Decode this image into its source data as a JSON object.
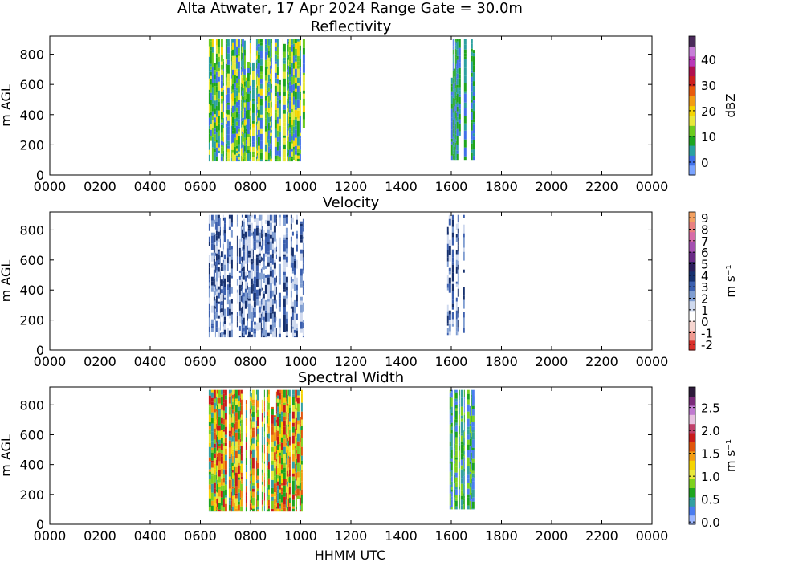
{
  "suptitle": "Alta Atwater, 17 Apr 2024 Range Gate = 30.0m",
  "x_axis_label": "HHMM UTC",
  "colors": {
    "frame": "#000000",
    "background": "#ffffff"
  },
  "chart_data": [
    {
      "type": "heatmap",
      "title": "Reflectivity",
      "ylabel": "m AGL",
      "xlabel": "",
      "xlim": [
        0,
        24
      ],
      "ylim": [
        0,
        920
      ],
      "x_ticks": [
        "0000",
        "0200",
        "0400",
        "0600",
        "0800",
        "1000",
        "1200",
        "1400",
        "1600",
        "1800",
        "2000",
        "2200",
        "0000"
      ],
      "y_ticks": [
        "0",
        "200",
        "400",
        "600",
        "800"
      ],
      "colorbar": {
        "label": "dBZ",
        "range": [
          -5,
          49
        ],
        "ticks": [
          "0",
          "10",
          "20",
          "30",
          "40"
        ],
        "colormap": [
          "#7aa3ff",
          "#3f6fe8",
          "#2aa0a0",
          "#1ea51e",
          "#6ccb1e",
          "#e8e83a",
          "#f5d400",
          "#f39c12",
          "#e85a0c",
          "#cc1f1f",
          "#b0104f",
          "#b838b8",
          "#c77ed8",
          "#4a2a5a"
        ]
      },
      "echo_segments": [
        {
          "start": "0620",
          "end": "1005",
          "top_m": 900,
          "bottom_m": 90,
          "dominant": "yellow-green, mixed blue"
        },
        {
          "start": "1550",
          "end": "1700",
          "top_m": 900,
          "bottom_m": 100,
          "dominant": "blue with green streaks"
        }
      ]
    },
    {
      "type": "heatmap",
      "title": "Velocity",
      "ylabel": "m AGL",
      "xlabel": "",
      "xlim": [
        0,
        24
      ],
      "ylim": [
        0,
        920
      ],
      "x_ticks": [
        "0000",
        "0200",
        "0400",
        "0600",
        "0800",
        "1000",
        "1200",
        "1400",
        "1600",
        "1800",
        "2000",
        "2200",
        "0000"
      ],
      "y_ticks": [
        "0",
        "200",
        "400",
        "600",
        "800"
      ],
      "colorbar": {
        "label": "m s⁻¹",
        "range": [
          -2.5,
          9.5
        ],
        "ticks": [
          "-2",
          "-1",
          "0",
          "1",
          "2",
          "3",
          "4",
          "5",
          "6",
          "7",
          "8",
          "9"
        ],
        "colormap": [
          "#d9302a",
          "#ef9a90",
          "#f6d5d0",
          "#ffffff",
          "#cfd9ee",
          "#7f9dd1",
          "#3b5fae",
          "#16306e",
          "#2b1d5a",
          "#6a2b86",
          "#a44fb0",
          "#d86ca8",
          "#e98080",
          "#f2a060"
        ]
      },
      "echo_segments": [
        {
          "start": "0620",
          "end": "1005",
          "top_m": 900,
          "bottom_m": 85,
          "dominant": "light to dark blue"
        },
        {
          "start": "1550",
          "end": "1710",
          "top_m": 900,
          "bottom_m": 100,
          "dominant": "light to dark blue"
        }
      ]
    },
    {
      "type": "heatmap",
      "title": "Spectral Width",
      "ylabel": "m AGL",
      "xlabel": "HHMM UTC",
      "xlim": [
        0,
        24
      ],
      "ylim": [
        0,
        920
      ],
      "x_ticks": [
        "0000",
        "0200",
        "0400",
        "0600",
        "0800",
        "1000",
        "1200",
        "1400",
        "1600",
        "1800",
        "2000",
        "2200",
        "0000"
      ],
      "y_ticks": [
        "0",
        "200",
        "400",
        "600",
        "800"
      ],
      "colorbar": {
        "label": "m s⁻¹",
        "range": [
          -0.05,
          2.95
        ],
        "ticks": [
          "0.0",
          "0.5",
          "1.0",
          "1.5",
          "2.0",
          "2.5"
        ],
        "colormap": [
          "#9db7ff",
          "#4b7df0",
          "#33a0a0",
          "#1ea51e",
          "#7ed11e",
          "#e8e83a",
          "#f5d400",
          "#f39c12",
          "#e0550c",
          "#c81a1a",
          "#c0406a",
          "#e8c0e0",
          "#c07ad0",
          "#7a2a7a",
          "#2d1a3a"
        ]
      },
      "echo_segments": [
        {
          "start": "0620",
          "end": "1005",
          "top_m": 900,
          "bottom_m": 85,
          "dominant": "green-yellow with orange/red"
        },
        {
          "start": "1550",
          "end": "1710",
          "top_m": 900,
          "bottom_m": 100,
          "dominant": "green/teal"
        }
      ]
    }
  ]
}
